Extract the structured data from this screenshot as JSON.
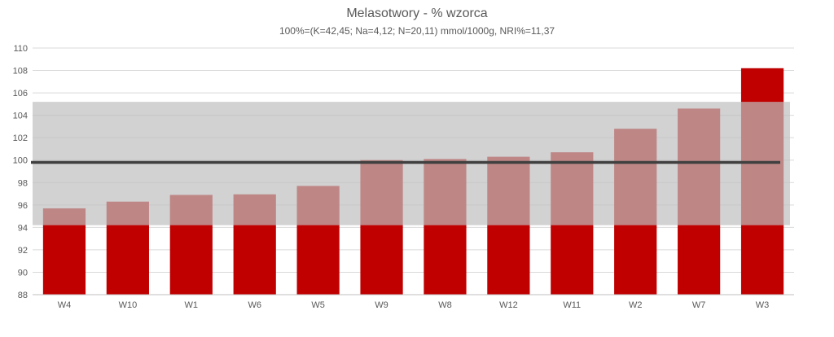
{
  "chart_data": {
    "type": "bar",
    "title": "Melasotwory - % wzorca",
    "subtitle": "100%=(K=42,45; Na=4,12; N=20,11) mmol/1000g, NRI%=11,37",
    "categories": [
      "W4",
      "W10",
      "W1",
      "W6",
      "W5",
      "W9",
      "W8",
      "W12",
      "W11",
      "W2",
      "W7",
      "W3"
    ],
    "values": [
      95.7,
      96.3,
      96.9,
      96.95,
      97.7,
      100.0,
      100.1,
      100.3,
      100.7,
      102.8,
      104.6,
      108.2
    ],
    "ylim": [
      88,
      110
    ],
    "yticks": [
      88,
      90,
      92,
      94,
      96,
      98,
      100,
      102,
      104,
      106,
      108,
      110
    ],
    "reference_line": 99.8,
    "reference_band": [
      94.2,
      105.2
    ],
    "grid": true,
    "colors": {
      "bar": "#c00000",
      "band": "#bfbfbf",
      "reference_line": "#404040",
      "grid": "#d9d9d9",
      "text": "#595959"
    }
  }
}
